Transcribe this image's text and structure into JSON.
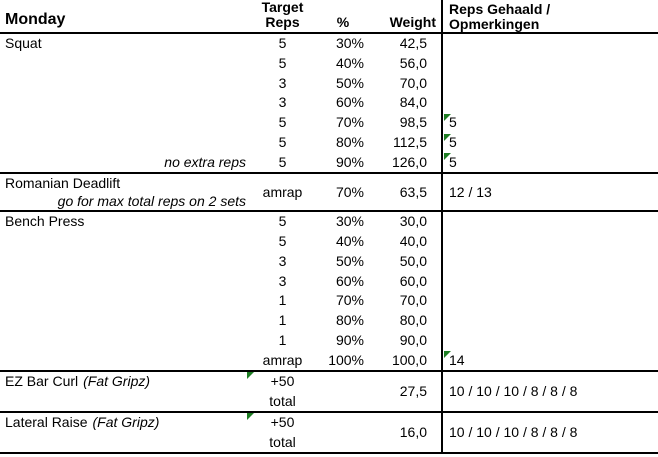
{
  "title": "Monday",
  "header": {
    "target_line1": "Target",
    "target_line2": "Reps",
    "pct": "%",
    "weight": "Weight",
    "reps_line1": "Reps Gehaald /",
    "reps_line2": "Opmerkingen"
  },
  "colors": {
    "flag_green": "#1d7d23",
    "border": "#000000"
  },
  "sections": [
    {
      "type": "sets",
      "exercise": "Squat",
      "rows": [
        {
          "target": "5",
          "pct": "30%",
          "weight": "42,5",
          "reps": "",
          "flag": false
        },
        {
          "target": "5",
          "pct": "40%",
          "weight": "56,0",
          "reps": "",
          "flag": false
        },
        {
          "target": "3",
          "pct": "50%",
          "weight": "70,0",
          "reps": "",
          "flag": false
        },
        {
          "target": "3",
          "pct": "60%",
          "weight": "84,0",
          "reps": "",
          "flag": false
        },
        {
          "target": "5",
          "pct": "70%",
          "weight": "98,5",
          "reps": "5",
          "flag": true
        },
        {
          "target": "5",
          "pct": "80%",
          "weight": "112,5",
          "reps": "5",
          "flag": true
        },
        {
          "note": "no extra reps",
          "target": "5",
          "pct": "90%",
          "weight": "126,0",
          "reps": "5",
          "flag": true
        }
      ]
    },
    {
      "type": "merged",
      "exercise": "Romanian Deadlift",
      "note": "go for max total reps on 2 sets",
      "target": "amrap",
      "pct": "70%",
      "weight": "63,5",
      "reps": "12 / 13",
      "flag": false
    },
    {
      "type": "sets",
      "exercise": "Bench Press",
      "rows": [
        {
          "target": "5",
          "pct": "30%",
          "weight": "30,0",
          "reps": "",
          "flag": false
        },
        {
          "target": "5",
          "pct": "40%",
          "weight": "40,0",
          "reps": "",
          "flag": false
        },
        {
          "target": "3",
          "pct": "50%",
          "weight": "50,0",
          "reps": "",
          "flag": false
        },
        {
          "target": "3",
          "pct": "60%",
          "weight": "60,0",
          "reps": "",
          "flag": false
        },
        {
          "target": "1",
          "pct": "70%",
          "weight": "70,0",
          "reps": "",
          "flag": false
        },
        {
          "target": "1",
          "pct": "80%",
          "weight": "80,0",
          "reps": "",
          "flag": false
        },
        {
          "target": "1",
          "pct": "90%",
          "weight": "90,0",
          "reps": "",
          "flag": false
        },
        {
          "target": "amrap",
          "pct": "100%",
          "weight": "100,0",
          "reps": "14",
          "flag": true
        }
      ]
    },
    {
      "type": "accessory",
      "exercise": "EZ Bar Curl",
      "exercise_note": "(Fat Gripz)",
      "target_line1": "+50",
      "target_line2": "total",
      "target_flag": true,
      "weight": "27,5",
      "reps": "10 / 10 / 10 / 8 / 8 / 8"
    },
    {
      "type": "accessory",
      "exercise": "Lateral Raise",
      "exercise_note": "(Fat Gripz)",
      "target_line1": "+50",
      "target_line2": "total",
      "target_flag": true,
      "weight": "16,0",
      "reps": "10 / 10 / 10 / 8 / 8 / 8"
    }
  ]
}
